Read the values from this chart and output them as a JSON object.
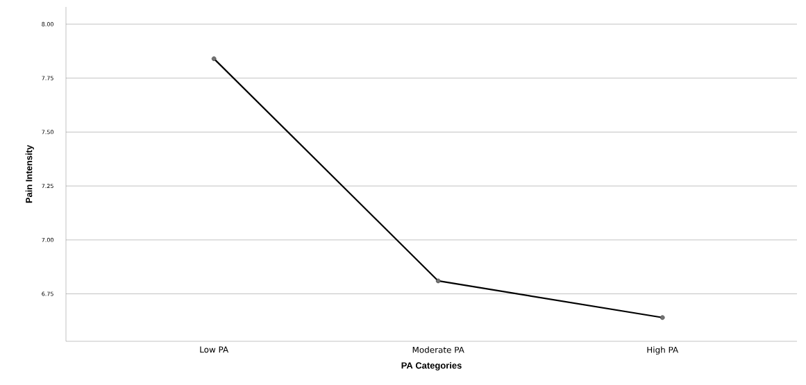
{
  "chart_data": {
    "type": "line",
    "xlabel": "PA Categories",
    "ylabel": "Pain Intensity",
    "categories": [
      "Low PA",
      "Moderate PA",
      "High PA"
    ],
    "series": [
      {
        "color": "#000000",
        "values": [
          7.84,
          6.81,
          6.64
        ]
      }
    ],
    "ylim": [
      6.53,
      8.08
    ],
    "yticks": [
      {
        "value": 6.75,
        "label": "6.75"
      },
      {
        "value": 7.0,
        "label": "7.00"
      },
      {
        "value": 7.25,
        "label": "7.25"
      },
      {
        "value": 7.5,
        "label": "7.50"
      },
      {
        "value": 7.75,
        "label": "7.75"
      },
      {
        "value": 8.0,
        "label": "8.00"
      }
    ],
    "grid": "y",
    "marker": "circle",
    "line_style": "solid"
  }
}
